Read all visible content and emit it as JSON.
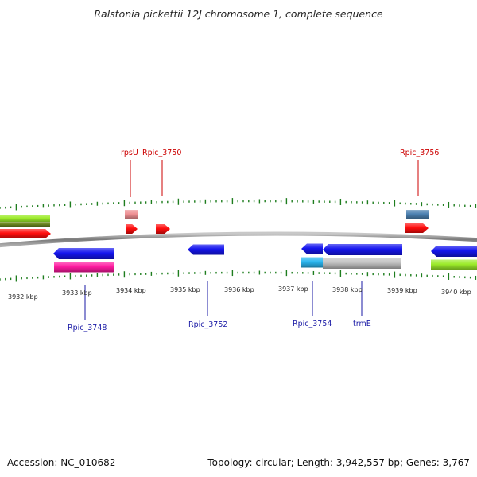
{
  "title": "Ralstonia pickettii 12J chromosome 1, complete sequence",
  "footer": {
    "accession": "Accession: NC_010682",
    "summary": "Topology: circular; Length: 3,942,557 bp; Genes: 3,767"
  },
  "colors": {
    "tick": "#1e7d1e",
    "backbone": "#8f8f8f",
    "label_forward": "#cc0000",
    "label_reverse": "#1a1aa6",
    "gene_red": "#ff0d0d",
    "gene_pink": "#ee8e92",
    "gene_steel": "#4a7fb0",
    "gene_blue": "#1515ee",
    "gene_magenta": "#ff1aa0",
    "gene_cyan": "#29b6f0",
    "gene_gray": "#c2c2c2",
    "gene_lime": "#9ceb2a",
    "gene_olive": "#6e8a22"
  },
  "kbp_labels": [
    "3932 kbp",
    "3933 kbp",
    "3934 kbp",
    "3935 kbp",
    "3936 kbp",
    "3937 kbp",
    "3938 kbp",
    "3939 kbp",
    "3940 kbp"
  ],
  "gene_labels": {
    "forward": [
      "rpsU",
      "Rpic_3750",
      "Rpic_3756"
    ],
    "reverse": [
      "Rpic_3748",
      "Rpic_3752",
      "Rpic_3754",
      "trmE"
    ]
  }
}
